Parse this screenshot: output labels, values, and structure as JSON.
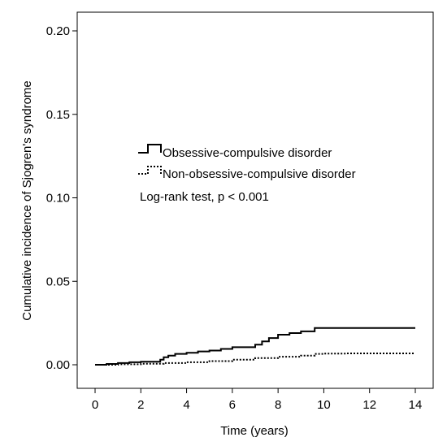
{
  "chart_data": {
    "type": "line",
    "title": "",
    "xlabel": "Time (years)",
    "ylabel": "Cumulative incidence of Sjogren's syndrome",
    "xlim": [
      0,
      14
    ],
    "ylim": [
      0,
      0.2
    ],
    "xticks": [
      0,
      2,
      4,
      6,
      8,
      10,
      12,
      14
    ],
    "xtick_labels": [
      "0",
      "2",
      "4",
      "6",
      "8",
      "10",
      "12",
      "14"
    ],
    "yticks": [
      0,
      0.05,
      0.1,
      0.15,
      0.2
    ],
    "ytick_labels": [
      "0.00",
      "0.05",
      "0.10",
      "0.15",
      "0.20"
    ],
    "grid": false,
    "legend_position": "middle-left",
    "annotation": "Log-rank test, p < 0.001",
    "series": [
      {
        "name": "Obsessive-compulsive disorder",
        "style": "solid",
        "color": "#000000",
        "x": [
          0,
          0.5,
          1.0,
          1.5,
          2.0,
          2.5,
          2.85,
          3.0,
          3.2,
          3.5,
          4.0,
          4.5,
          5.0,
          5.5,
          6.0,
          6.5,
          7.0,
          7.3,
          7.6,
          8.0,
          8.5,
          9.0,
          9.6,
          10.0,
          11.0,
          12.0,
          13.0,
          14.0
        ],
        "y": [
          0,
          0.0005,
          0.001,
          0.0015,
          0.0018,
          0.0018,
          0.003,
          0.0045,
          0.0055,
          0.0065,
          0.0072,
          0.008,
          0.0085,
          0.0095,
          0.0105,
          0.0105,
          0.012,
          0.014,
          0.016,
          0.018,
          0.019,
          0.02,
          0.022,
          0.022,
          0.022,
          0.022,
          0.022,
          0.022
        ]
      },
      {
        "name": "Non-obsessive-compulsive disorder",
        "style": "dotted",
        "color": "#000000",
        "x": [
          0,
          1.0,
          2.0,
          3.0,
          4.0,
          5.0,
          6.0,
          7.0,
          8.0,
          9.0,
          9.6,
          10.0,
          11.0,
          12.0,
          13.0,
          14.0
        ],
        "y": [
          0,
          0.0003,
          0.0006,
          0.001,
          0.0015,
          0.0022,
          0.003,
          0.004,
          0.0048,
          0.0055,
          0.0065,
          0.0067,
          0.0068,
          0.0068,
          0.0068,
          0.0068
        ]
      }
    ]
  }
}
